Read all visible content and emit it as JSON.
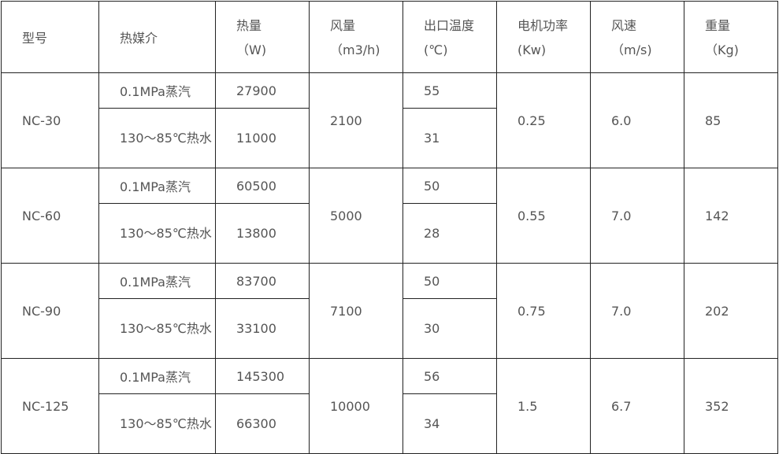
{
  "headers": [
    {
      "line1": "型号",
      "line2": ""
    },
    {
      "line1": "热媒介",
      "line2": ""
    },
    {
      "line1": "热量",
      "line2": "（W)"
    },
    {
      "line1": "风量",
      "line2": "（m3/h)"
    },
    {
      "line1": "出口温度",
      "line2": "(℃)"
    },
    {
      "line1": "电机功率",
      "line2": "(Kw)"
    },
    {
      "line1": "风速",
      "line2": "（m/s)"
    },
    {
      "line1": "重量",
      "line2": "（Kg)"
    }
  ],
  "rows": [
    {
      "model": "NC-30",
      "medium_steam": "0.1MPa蒸汽",
      "medium_water": "130～85℃热水",
      "heat_steam": "27900",
      "heat_water": "11000",
      "airflow": "2100",
      "temp_steam": "55",
      "temp_water": "31",
      "power": "0.25",
      "speed": "6.0",
      "weight": "85"
    },
    {
      "model": "NC-60",
      "medium_steam": "0.1MPa蒸汽",
      "medium_water": "130～85℃热水",
      "heat_steam": "60500",
      "heat_water": "13800",
      "airflow": "5000",
      "temp_steam": "50",
      "temp_water": "28",
      "power": "0.55",
      "speed": "7.0",
      "weight": "142"
    },
    {
      "model": "NC-90",
      "medium_steam": "0.1MPa蒸汽",
      "medium_water": "130～85℃热水",
      "heat_steam": "83700",
      "heat_water": "33100",
      "airflow": "7100",
      "temp_steam": "50",
      "temp_water": "30",
      "power": "0.75",
      "speed": "7.0",
      "weight": "202"
    },
    {
      "model": "NC-125",
      "medium_steam": "0.1MPa蒸汽",
      "medium_water": "130～85℃热水",
      "heat_steam": "145300",
      "heat_water": "66300",
      "airflow": "10000",
      "temp_steam": "56",
      "temp_water": "34",
      "power": "1.5",
      "speed": "6.7",
      "weight": "352"
    }
  ]
}
